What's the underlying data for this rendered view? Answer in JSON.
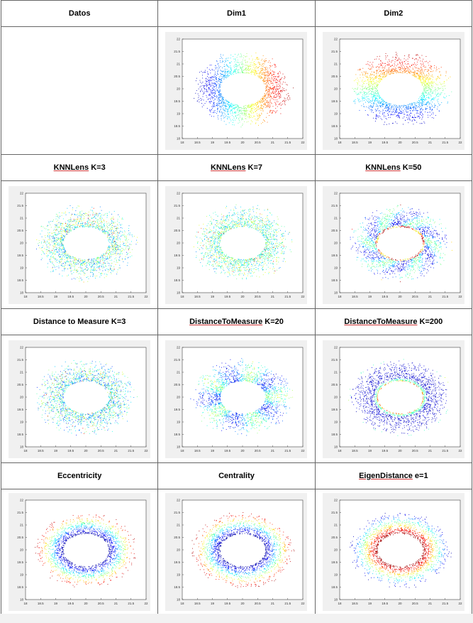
{
  "table": {
    "rows": [
      {
        "headers": [
          {
            "label": "Datos",
            "underline": ""
          },
          {
            "label": "Dim1",
            "underline": ""
          },
          {
            "label": "Dim2",
            "underline": ""
          }
        ],
        "panels": [
          {
            "present": false
          },
          {
            "present": true,
            "mode": "dim1"
          },
          {
            "present": true,
            "mode": "dim2"
          }
        ]
      },
      {
        "headers": [
          {
            "label": " K=3",
            "underline": "KNNLens"
          },
          {
            "label": " K=7",
            "underline": "KNNLens"
          },
          {
            "label": " K=50",
            "underline": "KNNLens"
          }
        ],
        "panels": [
          {
            "present": true,
            "mode": "knn3"
          },
          {
            "present": true,
            "mode": "knn7"
          },
          {
            "present": true,
            "mode": "knn50"
          }
        ]
      },
      {
        "headers": [
          {
            "label": "Distance to Measure K=3",
            "underline": ""
          },
          {
            "label": " K=20",
            "underline": "DistanceToMeasure"
          },
          {
            "label": " K=200",
            "underline": "DistanceToMeasure"
          }
        ],
        "panels": [
          {
            "present": true,
            "mode": "dtm3"
          },
          {
            "present": true,
            "mode": "dtm20"
          },
          {
            "present": true,
            "mode": "dtm200"
          }
        ]
      },
      {
        "headers": [
          {
            "label": "Eccentricity",
            "underline": ""
          },
          {
            "label": "Centrality",
            "underline": ""
          },
          {
            "label": " e=1",
            "underline": "EigenDistance"
          }
        ],
        "panels": [
          {
            "present": true,
            "mode": "ecc"
          },
          {
            "present": true,
            "mode": "cent"
          },
          {
            "present": true,
            "mode": "eigen"
          }
        ]
      }
    ]
  },
  "plot": {
    "x_ticks": [
      "18",
      "18.5",
      "19",
      "19.5",
      "20",
      "20.5",
      "21",
      "21.5",
      "22"
    ],
    "y_ticks": [
      "18",
      "18.5",
      "19",
      "19.5",
      "20",
      "20.5",
      "21",
      "21.5",
      "22"
    ],
    "xlim": [
      18,
      22
    ],
    "ylim": [
      18,
      22
    ],
    "ring": {
      "center": [
        20,
        20
      ],
      "outer_radii": [
        1.75,
        1.6
      ],
      "inner_radii": [
        0.75,
        0.65
      ]
    },
    "colormap": [
      "#00008f",
      "#0000ff",
      "#00ffff",
      "#ffff00",
      "#ff0000",
      "#800000"
    ]
  }
}
